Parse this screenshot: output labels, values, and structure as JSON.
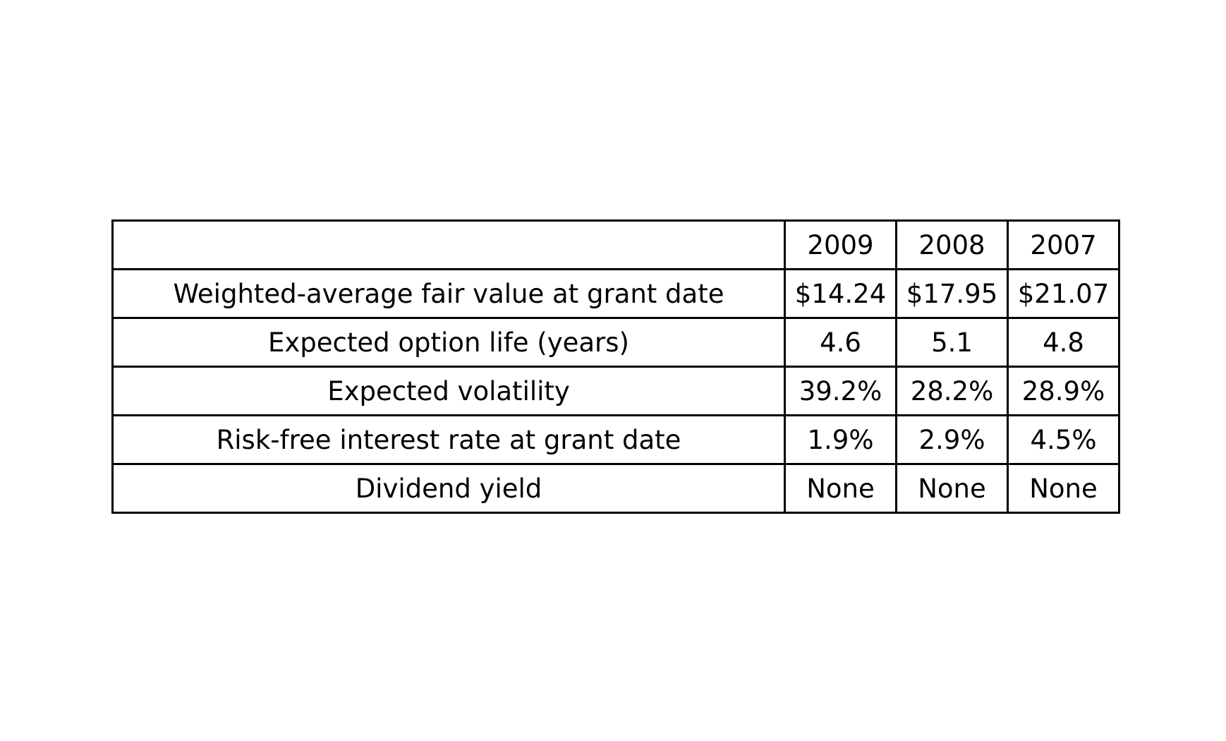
{
  "table": {
    "header": [
      "",
      "2009",
      "2008",
      "2007"
    ],
    "rows": [
      [
        "Weighted-average fair value at grant date",
        "$14.24",
        "$17.95",
        "$21.07"
      ],
      [
        "Expected option life (years)",
        "4.6",
        "5.1",
        "4.8"
      ],
      [
        "Expected volatility",
        "39.2%",
        "28.2%",
        "28.9%"
      ],
      [
        "Risk-free interest rate at grant date",
        "1.9%",
        "2.9%",
        "4.5%"
      ],
      [
        "Dividend yield",
        "None",
        "None",
        "None"
      ]
    ]
  }
}
